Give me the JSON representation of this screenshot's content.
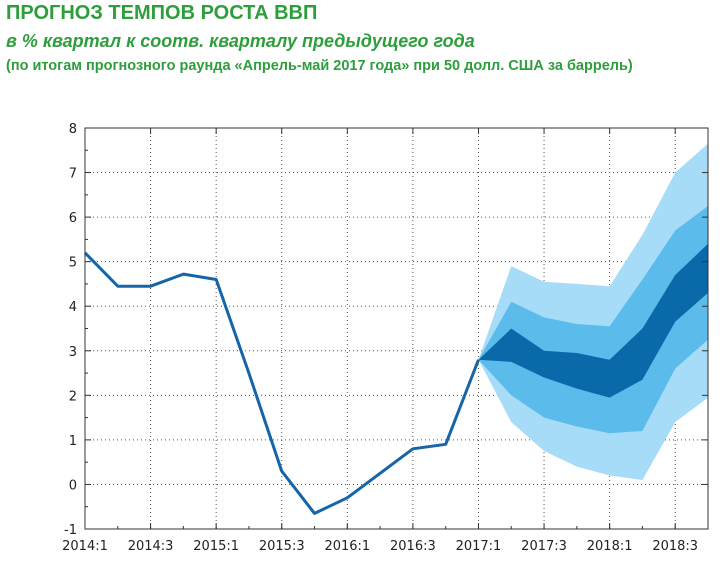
{
  "header": {
    "title": "ПРОГНОЗ ТЕМПОВ РОСТА ВВП",
    "subtitle": "в % квартал к соотв. кварталу предыдущего года",
    "note": "(по итогам прогнозного раунда «Апрель-май 2017 года» при 50 долл. США за баррель)"
  },
  "colors": {
    "history_line": "#1565a8",
    "band_outer": "#a6dcf7",
    "band_middle": "#5bbcec",
    "band_inner": "#0a69a8",
    "accent_text": "#2e9e3c"
  },
  "chart_data": {
    "type": "line",
    "title": "ПРОГНОЗ ТЕМПОВ РОСТА ВВП",
    "x_tick_labels": [
      "2014:1",
      "2014:3",
      "2015:1",
      "2015:3",
      "2016:1",
      "2016:3",
      "2017:1",
      "2017:3",
      "2018:1",
      "2018:3"
    ],
    "y_tick_labels": [
      "-1",
      "0",
      "1",
      "2",
      "3",
      "4",
      "5",
      "6",
      "7",
      "8"
    ],
    "ylim": [
      -1,
      8
    ],
    "x_start": "2014:1",
    "x_end": "2018:4",
    "grid": "dotted",
    "history": {
      "x": [
        "2014:1",
        "2014:2",
        "2014:3",
        "2014:4",
        "2015:1",
        "2015:2",
        "2015:3",
        "2015:4",
        "2016:1",
        "2016:2",
        "2016:3",
        "2016:4",
        "2017:1"
      ],
      "values": [
        5.2,
        4.45,
        4.45,
        4.72,
        4.6,
        2.5,
        0.3,
        -0.65,
        -0.3,
        0.25,
        0.8,
        0.9,
        2.8
      ]
    },
    "forecast": {
      "x": [
        "2017:1",
        "2017:2",
        "2017:3",
        "2017:4",
        "2018:1",
        "2018:2",
        "2018:3",
        "2018:4"
      ],
      "bands": [
        {
          "level": "outer",
          "upper": [
            2.8,
            4.9,
            4.55,
            4.5,
            4.45,
            5.6,
            7.0,
            7.65
          ],
          "lower": [
            2.8,
            1.4,
            0.75,
            0.4,
            0.2,
            0.1,
            1.4,
            1.95
          ]
        },
        {
          "level": "middle",
          "upper": [
            2.8,
            4.1,
            3.75,
            3.6,
            3.55,
            4.6,
            5.7,
            6.25
          ],
          "lower": [
            2.8,
            2.0,
            1.5,
            1.3,
            1.15,
            1.2,
            2.6,
            3.25
          ]
        },
        {
          "level": "inner",
          "upper": [
            2.8,
            3.5,
            3.0,
            2.95,
            2.8,
            3.5,
            4.7,
            5.4
          ],
          "lower": [
            2.8,
            2.75,
            2.4,
            2.15,
            1.95,
            2.35,
            3.65,
            4.3
          ]
        }
      ]
    }
  }
}
